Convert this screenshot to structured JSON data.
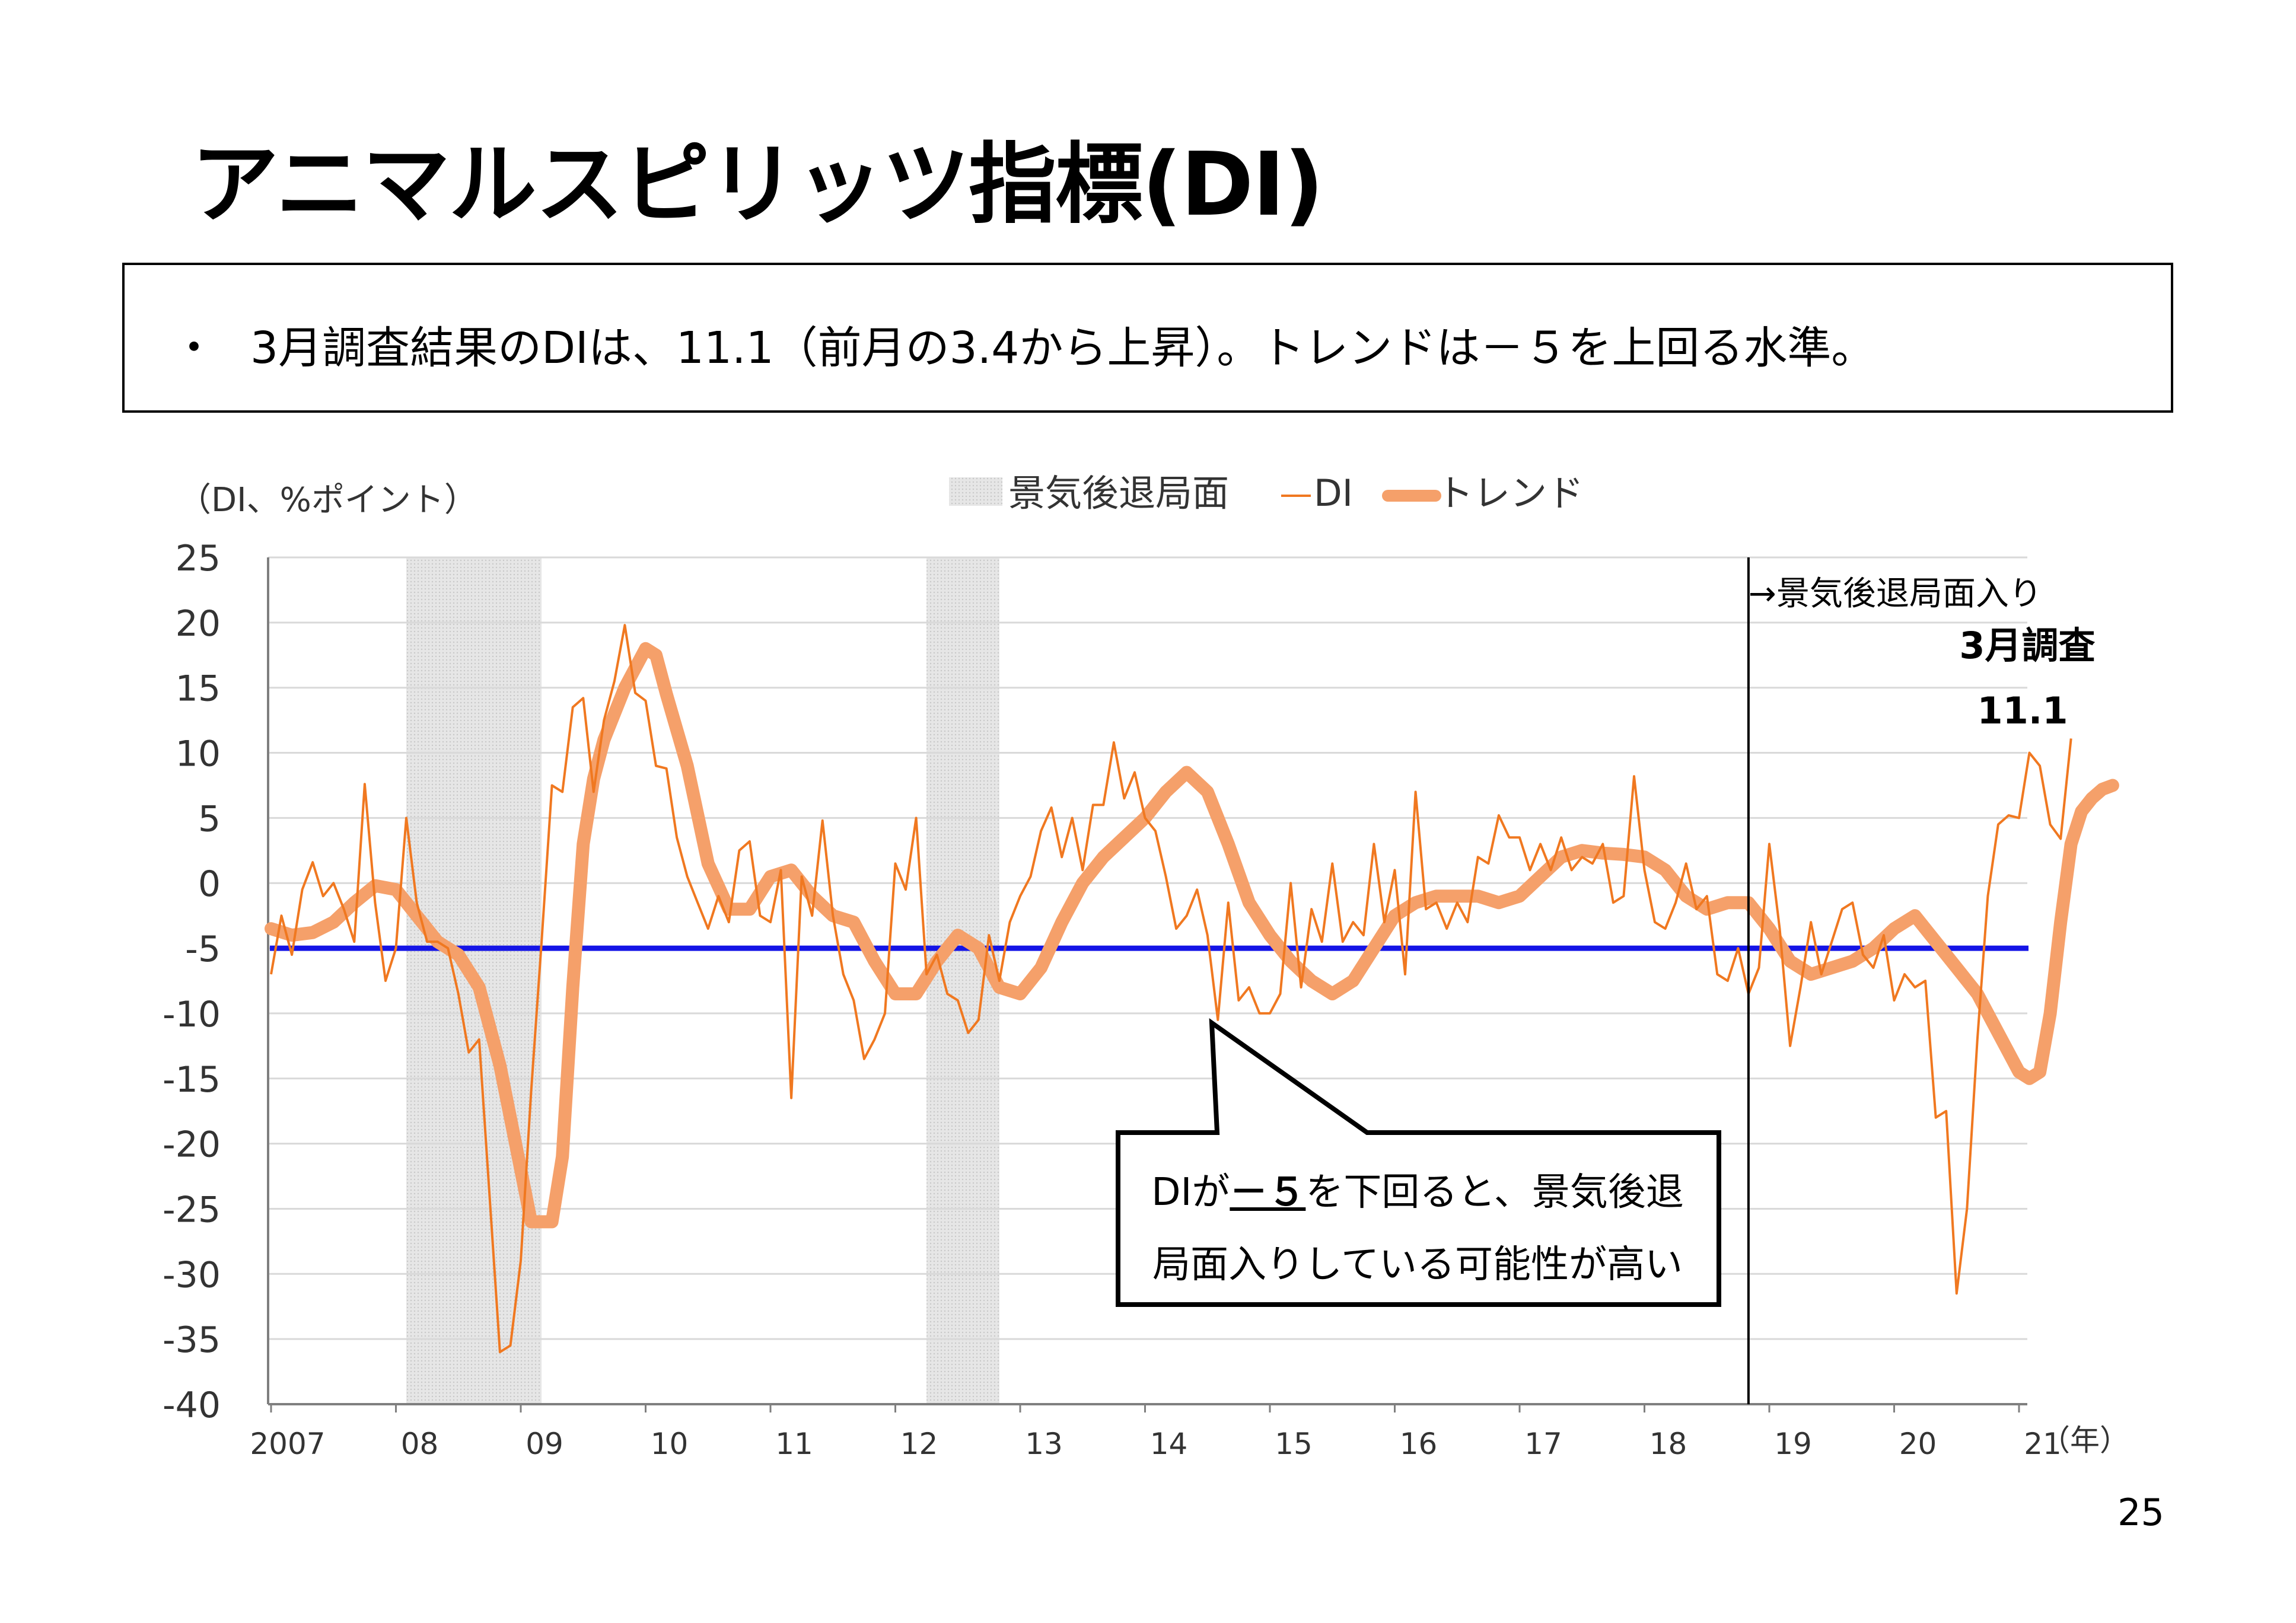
{
  "page": {
    "title": "アニマルスピリッツ指標(DI)",
    "bullet": "・",
    "summary": "3月調査結果のDIは、11.1（前月の3.4から上昇）。トレンドは－５を上回る水準。",
    "page_number": "25"
  },
  "callout": {
    "text_before": "DIが",
    "emphasis": "－５",
    "text_after_line1": "を下回ると、景気後退",
    "line2": "局面入りしている可能性が高い"
  },
  "colors": {
    "di": "#F07820",
    "trend": "#F5A06A",
    "threshold": "#1414E6",
    "recession_shade": "#E6E6E6",
    "grid": "#D9D9D9"
  },
  "chart_data": {
    "type": "line",
    "ylabel": "（DI、%ポイント）",
    "xlabel": "（年）",
    "ylim": [
      -40,
      25
    ],
    "yticks": [
      25,
      20,
      15,
      10,
      5,
      0,
      -5,
      -10,
      -15,
      -20,
      -25,
      -30,
      -35,
      -40
    ],
    "x_tick_labels": [
      {
        "label": "2007",
        "year": 2007
      },
      {
        "label": "08",
        "year": 2008
      },
      {
        "label": "09",
        "year": 2009
      },
      {
        "label": "10",
        "year": 2010
      },
      {
        "label": "11",
        "year": 2011
      },
      {
        "label": "12",
        "year": 2012
      },
      {
        "label": "13",
        "year": 2013
      },
      {
        "label": "14",
        "year": 2014
      },
      {
        "label": "15",
        "year": 2015
      },
      {
        "label": "16",
        "year": 2016
      },
      {
        "label": "17",
        "year": 2017
      },
      {
        "label": "18",
        "year": 2018
      },
      {
        "label": "19",
        "year": 2019
      },
      {
        "label": "20",
        "year": 2020
      },
      {
        "label": "21",
        "year": 2021
      }
    ],
    "grid": true,
    "legend_position": "top-center",
    "legend": {
      "recession": "景気後退局面",
      "di": "DI",
      "trend": "トレンド"
    },
    "recession_periods": [
      {
        "start": "2008-02",
        "end": "2009-03"
      },
      {
        "start": "2012-04",
        "end": "2012-11"
      }
    ],
    "threshold": -5,
    "recession_start_marker": {
      "date": "2018-11",
      "label": "→景気後退局面入り"
    },
    "latest_annotation": {
      "label": "3月調査",
      "value_label": "11.1"
    },
    "series": [
      {
        "name": "DI",
        "points": [
          [
            "2007-01",
            -7.0
          ],
          [
            "2007-02",
            -2.5
          ],
          [
            "2007-03",
            -5.5
          ],
          [
            "2007-04",
            -0.5
          ],
          [
            "2007-05",
            1.6
          ],
          [
            "2007-06",
            -1.0
          ],
          [
            "2007-07",
            0.0
          ],
          [
            "2007-08",
            -2.0
          ],
          [
            "2007-09",
            -4.5
          ],
          [
            "2007-10",
            7.6
          ],
          [
            "2007-11",
            -1.5
          ],
          [
            "2007-12",
            -7.5
          ],
          [
            "2008-01",
            -5.0
          ],
          [
            "2008-02",
            5.0
          ],
          [
            "2008-03",
            -1.5
          ],
          [
            "2008-04",
            -4.5
          ],
          [
            "2008-05",
            -4.5
          ],
          [
            "2008-06",
            -5.0
          ],
          [
            "2008-07",
            -8.5
          ],
          [
            "2008-08",
            -13.0
          ],
          [
            "2008-09",
            -12.0
          ],
          [
            "2008-10",
            -24.0
          ],
          [
            "2008-11",
            -36.0
          ],
          [
            "2008-12",
            -35.5
          ],
          [
            "2009-01",
            -29.0
          ],
          [
            "2009-02",
            -16.0
          ],
          [
            "2009-03",
            -4.5
          ],
          [
            "2009-04",
            7.5
          ],
          [
            "2009-05",
            7.0
          ],
          [
            "2009-06",
            13.5
          ],
          [
            "2009-07",
            14.2
          ],
          [
            "2009-08",
            7.0
          ],
          [
            "2009-09",
            12.5
          ],
          [
            "2009-10",
            15.5
          ],
          [
            "2009-11",
            19.8
          ],
          [
            "2009-12",
            14.6
          ],
          [
            "2010-01",
            14.0
          ],
          [
            "2010-02",
            9.0
          ],
          [
            "2010-03",
            8.8
          ],
          [
            "2010-04",
            3.5
          ],
          [
            "2010-05",
            0.5
          ],
          [
            "2010-06",
            -1.5
          ],
          [
            "2010-07",
            -3.5
          ],
          [
            "2010-08",
            -1.0
          ],
          [
            "2010-09",
            -3.0
          ],
          [
            "2010-10",
            2.5
          ],
          [
            "2010-11",
            3.2
          ],
          [
            "2010-12",
            -2.5
          ],
          [
            "2011-01",
            -3.0
          ],
          [
            "2011-02",
            1.0
          ],
          [
            "2011-03",
            -16.5
          ],
          [
            "2011-04",
            0.5
          ],
          [
            "2011-05",
            -2.5
          ],
          [
            "2011-06",
            4.8
          ],
          [
            "2011-07",
            -2.5
          ],
          [
            "2011-08",
            -7.0
          ],
          [
            "2011-09",
            -9.0
          ],
          [
            "2011-10",
            -13.5
          ],
          [
            "2011-11",
            -12.0
          ],
          [
            "2011-12",
            -10.0
          ],
          [
            "2012-01",
            1.5
          ],
          [
            "2012-02",
            -0.5
          ],
          [
            "2012-03",
            5.0
          ],
          [
            "2012-04",
            -7.0
          ],
          [
            "2012-05",
            -5.5
          ],
          [
            "2012-06",
            -8.5
          ],
          [
            "2012-07",
            -9.0
          ],
          [
            "2012-08",
            -11.5
          ],
          [
            "2012-09",
            -10.5
          ],
          [
            "2012-10",
            -4.0
          ],
          [
            "2012-11",
            -7.5
          ],
          [
            "2012-12",
            -3.0
          ],
          [
            "2013-01",
            -1.0
          ],
          [
            "2013-02",
            0.5
          ],
          [
            "2013-03",
            4.0
          ],
          [
            "2013-04",
            5.8
          ],
          [
            "2013-05",
            2.0
          ],
          [
            "2013-06",
            5.0
          ],
          [
            "2013-07",
            1.0
          ],
          [
            "2013-08",
            6.0
          ],
          [
            "2013-09",
            6.0
          ],
          [
            "2013-10",
            10.8
          ],
          [
            "2013-11",
            6.5
          ],
          [
            "2013-12",
            8.5
          ],
          [
            "2014-01",
            5.0
          ],
          [
            "2014-02",
            4.0
          ],
          [
            "2014-03",
            0.5
          ],
          [
            "2014-04",
            -3.5
          ],
          [
            "2014-05",
            -2.5
          ],
          [
            "2014-06",
            -0.5
          ],
          [
            "2014-07",
            -4.0
          ],
          [
            "2014-08",
            -10.5
          ],
          [
            "2014-09",
            -1.5
          ],
          [
            "2014-10",
            -9.0
          ],
          [
            "2014-11",
            -8.0
          ],
          [
            "2014-12",
            -10.0
          ],
          [
            "2015-01",
            -10.0
          ],
          [
            "2015-02",
            -8.5
          ],
          [
            "2015-03",
            0.0
          ],
          [
            "2015-04",
            -8.0
          ],
          [
            "2015-05",
            -2.0
          ],
          [
            "2015-06",
            -4.5
          ],
          [
            "2015-07",
            1.5
          ],
          [
            "2015-08",
            -4.5
          ],
          [
            "2015-09",
            -3.0
          ],
          [
            "2015-10",
            -4.0
          ],
          [
            "2015-11",
            3.0
          ],
          [
            "2015-12",
            -3.0
          ],
          [
            "2016-01",
            1.0
          ],
          [
            "2016-02",
            -7.0
          ],
          [
            "2016-03",
            7.0
          ],
          [
            "2016-04",
            -2.0
          ],
          [
            "2016-05",
            -1.5
          ],
          [
            "2016-06",
            -3.5
          ],
          [
            "2016-07",
            -1.5
          ],
          [
            "2016-08",
            -3.0
          ],
          [
            "2016-09",
            2.0
          ],
          [
            "2016-10",
            1.5
          ],
          [
            "2016-11",
            5.2
          ],
          [
            "2016-12",
            3.5
          ],
          [
            "2017-01",
            3.5
          ],
          [
            "2017-02",
            1.0
          ],
          [
            "2017-03",
            3.0
          ],
          [
            "2017-04",
            1.0
          ],
          [
            "2017-05",
            3.5
          ],
          [
            "2017-06",
            1.0
          ],
          [
            "2017-07",
            2.0
          ],
          [
            "2017-08",
            1.5
          ],
          [
            "2017-09",
            3.0
          ],
          [
            "2017-10",
            -1.5
          ],
          [
            "2017-11",
            -1.0
          ],
          [
            "2017-12",
            8.2
          ],
          [
            "2018-01",
            1.0
          ],
          [
            "2018-02",
            -3.0
          ],
          [
            "2018-03",
            -3.5
          ],
          [
            "2018-04",
            -1.5
          ],
          [
            "2018-05",
            1.5
          ],
          [
            "2018-06",
            -2.0
          ],
          [
            "2018-07",
            -1.0
          ],
          [
            "2018-08",
            -7.0
          ],
          [
            "2018-09",
            -7.5
          ],
          [
            "2018-10",
            -5.0
          ],
          [
            "2018-11",
            -8.5
          ],
          [
            "2018-12",
            -6.5
          ],
          [
            "2019-01",
            3.0
          ],
          [
            "2019-02",
            -3.5
          ],
          [
            "2019-03",
            -12.5
          ],
          [
            "2019-04",
            -8.0
          ],
          [
            "2019-05",
            -3.0
          ],
          [
            "2019-06",
            -7.0
          ],
          [
            "2019-07",
            -4.5
          ],
          [
            "2019-08",
            -2.0
          ],
          [
            "2019-09",
            -1.5
          ],
          [
            "2019-10",
            -5.5
          ],
          [
            "2019-11",
            -6.5
          ],
          [
            "2019-12",
            -4.0
          ],
          [
            "2020-01",
            -9.0
          ],
          [
            "2020-02",
            -7.0
          ],
          [
            "2020-03",
            -8.0
          ],
          [
            "2020-04",
            -7.5
          ],
          [
            "2020-05",
            -18.0
          ],
          [
            "2020-06",
            -17.5
          ],
          [
            "2020-07",
            -31.5
          ],
          [
            "2020-08",
            -25.0
          ],
          [
            "2020-09",
            -12.0
          ],
          [
            "2020-10",
            -1.0
          ],
          [
            "2020-11",
            4.5
          ],
          [
            "2020-12",
            5.2
          ],
          [
            "2021-01",
            5.0
          ],
          [
            "2021-02",
            10.0
          ],
          [
            "2021-03",
            9.0
          ],
          [
            "2021-04",
            4.5
          ],
          [
            "2021-05",
            3.4
          ],
          [
            "2021-06",
            11.1
          ]
        ]
      },
      {
        "name": "トレンド",
        "points": [
          [
            "2007-01",
            -3.5
          ],
          [
            "2007-03",
            -4.0
          ],
          [
            "2007-05",
            -3.8
          ],
          [
            "2007-07",
            -3.0
          ],
          [
            "2007-09",
            -1.5
          ],
          [
            "2007-11",
            -0.2
          ],
          [
            "2008-01",
            -0.5
          ],
          [
            "2008-03",
            -2.5
          ],
          [
            "2008-05",
            -4.5
          ],
          [
            "2008-07",
            -5.5
          ],
          [
            "2008-09",
            -8.0
          ],
          [
            "2008-11",
            -14.0
          ],
          [
            "2009-01",
            -22.0
          ],
          [
            "2009-02",
            -26.0
          ],
          [
            "2009-04",
            -26.0
          ],
          [
            "2009-05",
            -21.0
          ],
          [
            "2009-06",
            -8.0
          ],
          [
            "2009-07",
            3.0
          ],
          [
            "2009-08",
            8.0
          ],
          [
            "2009-09",
            11.0
          ],
          [
            "2009-11",
            15.0
          ],
          [
            "2010-01",
            18.0
          ],
          [
            "2010-02",
            17.5
          ],
          [
            "2010-03",
            14.5
          ],
          [
            "2010-05",
            9.0
          ],
          [
            "2010-07",
            1.5
          ],
          [
            "2010-09",
            -2.0
          ],
          [
            "2010-11",
            -2.0
          ],
          [
            "2011-01",
            0.5
          ],
          [
            "2011-03",
            1.0
          ],
          [
            "2011-05",
            -1.0
          ],
          [
            "2011-07",
            -2.5
          ],
          [
            "2011-09",
            -3.0
          ],
          [
            "2011-11",
            -6.0
          ],
          [
            "2012-01",
            -8.5
          ],
          [
            "2012-03",
            -8.5
          ],
          [
            "2012-05",
            -6.0
          ],
          [
            "2012-07",
            -4.0
          ],
          [
            "2012-09",
            -5.0
          ],
          [
            "2012-11",
            -8.0
          ],
          [
            "2013-01",
            -8.5
          ],
          [
            "2013-03",
            -6.5
          ],
          [
            "2013-05",
            -3.0
          ],
          [
            "2013-07",
            0.0
          ],
          [
            "2013-09",
            2.0
          ],
          [
            "2013-11",
            3.5
          ],
          [
            "2014-01",
            5.0
          ],
          [
            "2014-03",
            7.0
          ],
          [
            "2014-05",
            8.5
          ],
          [
            "2014-07",
            7.0
          ],
          [
            "2014-09",
            3.0
          ],
          [
            "2014-11",
            -1.5
          ],
          [
            "2015-01",
            -4.0
          ],
          [
            "2015-03",
            -6.0
          ],
          [
            "2015-05",
            -7.5
          ],
          [
            "2015-07",
            -8.5
          ],
          [
            "2015-09",
            -7.5
          ],
          [
            "2015-11",
            -5.0
          ],
          [
            "2016-01",
            -2.5
          ],
          [
            "2016-03",
            -1.5
          ],
          [
            "2016-05",
            -1.0
          ],
          [
            "2016-07",
            -1.0
          ],
          [
            "2016-09",
            -1.0
          ],
          [
            "2016-11",
            -1.5
          ],
          [
            "2017-01",
            -1.0
          ],
          [
            "2017-03",
            0.5
          ],
          [
            "2017-05",
            2.0
          ],
          [
            "2017-07",
            2.5
          ],
          [
            "2017-09",
            2.3
          ],
          [
            "2017-11",
            2.2
          ],
          [
            "2018-01",
            2.0
          ],
          [
            "2018-03",
            1.0
          ],
          [
            "2018-05",
            -1.0
          ],
          [
            "2018-07",
            -2.0
          ],
          [
            "2018-09",
            -1.5
          ],
          [
            "2018-11",
            -1.5
          ],
          [
            "2019-01",
            -3.5
          ],
          [
            "2019-03",
            -6.0
          ],
          [
            "2019-05",
            -7.0
          ],
          [
            "2019-07",
            -6.5
          ],
          [
            "2019-09",
            -6.0
          ],
          [
            "2019-11",
            -5.0
          ],
          [
            "2020-01",
            -3.5
          ],
          [
            "2020-03",
            -2.5
          ],
          [
            "2020-05",
            -4.5
          ],
          [
            "2020-07",
            -6.5
          ],
          [
            "2020-09",
            -8.5
          ],
          [
            "2020-11",
            -11.5
          ],
          [
            "2021-01",
            -14.5
          ],
          [
            "2021-02",
            -15.0
          ],
          [
            "2021-03",
            -14.5
          ],
          [
            "2021-04",
            -10.0
          ],
          [
            "2021-05",
            -3.0
          ],
          [
            "2021-06",
            3.0
          ],
          [
            "2021-07",
            5.5
          ],
          [
            "2021-08",
            6.5
          ],
          [
            "2021-09",
            7.2
          ],
          [
            "2021-10",
            7.5
          ]
        ]
      }
    ]
  }
}
